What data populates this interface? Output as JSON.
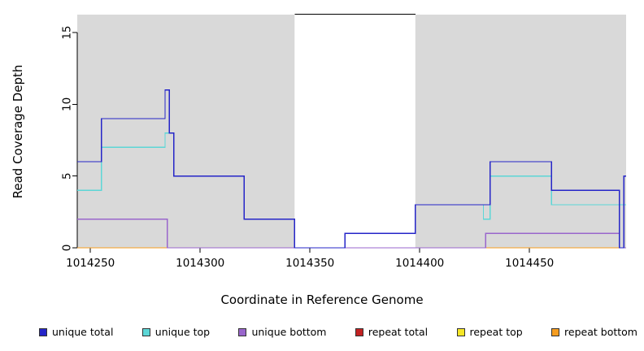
{
  "chart_data": {
    "type": "line",
    "subtype": "step-coverage-plot",
    "title": "",
    "xlabel": "Coordinate in Reference Genome",
    "ylabel": "Read Coverage Depth",
    "x_domain": [
      1014244,
      1014494
    ],
    "y_domain": [
      0,
      16.25
    ],
    "x_ticks": [
      1014250,
      1014300,
      1014350,
      1014400,
      1014450
    ],
    "y_ticks": [
      0,
      5,
      10,
      15
    ],
    "grid": false,
    "legend_position": "bottom",
    "shaded_regions": [
      {
        "x1": 1014244,
        "x2": 1014343,
        "color": "#D9D9D9"
      },
      {
        "x1": 1014398,
        "x2": 1014494,
        "color": "#D9D9D9"
      }
    ],
    "gap_region": {
      "x1": 1014343,
      "x2": 1014398
    },
    "series": [
      {
        "name": "repeat total",
        "color": "#C22222",
        "points": [
          [
            1014244,
            0
          ]
        ]
      },
      {
        "name": "repeat top",
        "color": "#F5E626",
        "points": [
          [
            1014244,
            0
          ]
        ]
      },
      {
        "name": "repeat bottom",
        "color": "#F59D20",
        "points": [
          [
            1014244,
            0
          ]
        ]
      },
      {
        "name": "unique bottom",
        "color": "#9966CC",
        "points": [
          [
            1014244,
            2
          ],
          [
            1014285,
            0
          ],
          [
            1014430,
            1
          ],
          [
            1014491,
            0
          ]
        ]
      },
      {
        "name": "unique top",
        "color": "#5CD6D6",
        "points": [
          [
            1014244,
            4
          ],
          [
            1014255,
            7
          ],
          [
            1014284,
            8
          ],
          [
            1014288,
            5
          ],
          [
            1014320,
            2
          ],
          [
            1014343,
            0
          ],
          [
            1014366,
            1
          ],
          [
            1014398,
            3
          ],
          [
            1014429,
            2
          ],
          [
            1014432,
            5
          ],
          [
            1014460,
            3
          ]
        ]
      },
      {
        "name": "unique total",
        "color": "#2525C8",
        "points": [
          [
            1014244,
            6
          ],
          [
            1014255,
            9
          ],
          [
            1014284,
            11
          ],
          [
            1014286,
            8
          ],
          [
            1014288,
            5
          ],
          [
            1014320,
            2
          ],
          [
            1014343,
            0
          ],
          [
            1014366,
            1
          ],
          [
            1014398,
            3
          ],
          [
            1014432,
            6
          ],
          [
            1014460,
            4
          ],
          [
            1014491,
            0
          ],
          [
            1014493,
            5
          ]
        ]
      }
    ],
    "legend": [
      {
        "label": "unique total",
        "color": "#2525C8"
      },
      {
        "label": "unique top",
        "color": "#5CD6D6"
      },
      {
        "label": "unique bottom",
        "color": "#9966CC"
      },
      {
        "label": "repeat total",
        "color": "#C22222"
      },
      {
        "label": "repeat top",
        "color": "#F5E626"
      },
      {
        "label": "repeat bottom",
        "color": "#F59D20"
      }
    ]
  }
}
